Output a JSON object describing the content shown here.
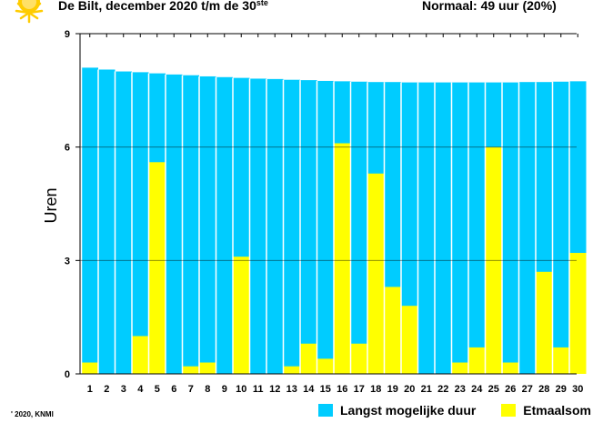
{
  "header": {
    "title_main": "De Bilt, december 2020 t/m de 30",
    "title_suffix": "ste",
    "normal": "Normaal: 49 uur (20%)"
  },
  "footer": {
    "copyright": "' 2020, KNMI"
  },
  "legend": {
    "max_label": "Langst mogelijke duur",
    "actual_label": "Etmaalsom"
  },
  "icons": {
    "sun": "sun-icon"
  },
  "colors": {
    "max": "#00CCFF",
    "actual": "#FFFF00",
    "sun": "#FFCC00",
    "separator": "#ffffff"
  },
  "chart_data": {
    "type": "bar",
    "title": "De Bilt, december 2020 t/m de 30ste",
    "xlabel": "",
    "ylabel": "Uren",
    "ylim": [
      0,
      9
    ],
    "yticks": [
      0,
      3,
      6,
      9
    ],
    "categories": [
      "1",
      "2",
      "3",
      "4",
      "5",
      "6",
      "7",
      "8",
      "9",
      "10",
      "11",
      "12",
      "13",
      "14",
      "15",
      "16",
      "17",
      "18",
      "19",
      "20",
      "21",
      "22",
      "23",
      "24",
      "25",
      "26",
      "27",
      "28",
      "29",
      "30"
    ],
    "series": [
      {
        "name": "Langst mogelijke duur",
        "color": "#00CCFF",
        "values": [
          8.1,
          8.05,
          8.0,
          7.98,
          7.95,
          7.92,
          7.9,
          7.87,
          7.85,
          7.83,
          7.81,
          7.8,
          7.78,
          7.77,
          7.75,
          7.74,
          7.73,
          7.72,
          7.72,
          7.71,
          7.71,
          7.71,
          7.71,
          7.71,
          7.71,
          7.71,
          7.72,
          7.72,
          7.73,
          7.74
        ]
      },
      {
        "name": "Etmaalsom",
        "color": "#FFFF00",
        "values": [
          0.3,
          0,
          0,
          1.0,
          5.6,
          0,
          0.2,
          0.3,
          0,
          3.1,
          0,
          0,
          0.2,
          0.8,
          0.4,
          6.1,
          0.8,
          5.3,
          2.3,
          1.8,
          0,
          0,
          0.3,
          0.7,
          6.0,
          0.3,
          0,
          2.7,
          0.7,
          3.2
        ]
      }
    ]
  }
}
